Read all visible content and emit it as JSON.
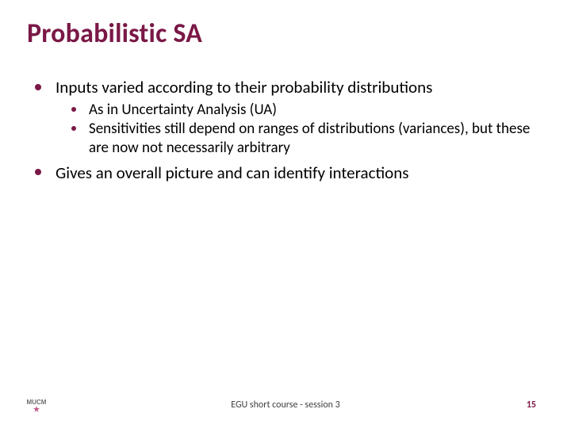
{
  "colors": {
    "title": "#7a1846",
    "bullet_l1": "#7a1846",
    "bullet_l2": "#7a1846",
    "pagenum": "#7a1846",
    "body_text": "#000000",
    "footer_text": "#404040",
    "logo_text": "#6e6e6e",
    "logo_star": "#c05a8a",
    "background": "#ffffff"
  },
  "title": "Probabilistic SA",
  "bullets": {
    "item1": "Inputs varied according to their probability distributions",
    "sub1": "As in Uncertainty Analysis (UA)",
    "sub2": "Sensitivities still depend on ranges of distributions (variances), but these are now not necessarily arbitrary",
    "item2": "Gives an overall picture and can identify interactions"
  },
  "footer": {
    "center": "EGU short course - session 3",
    "page": "15"
  },
  "logo": {
    "text": "MUCM"
  }
}
